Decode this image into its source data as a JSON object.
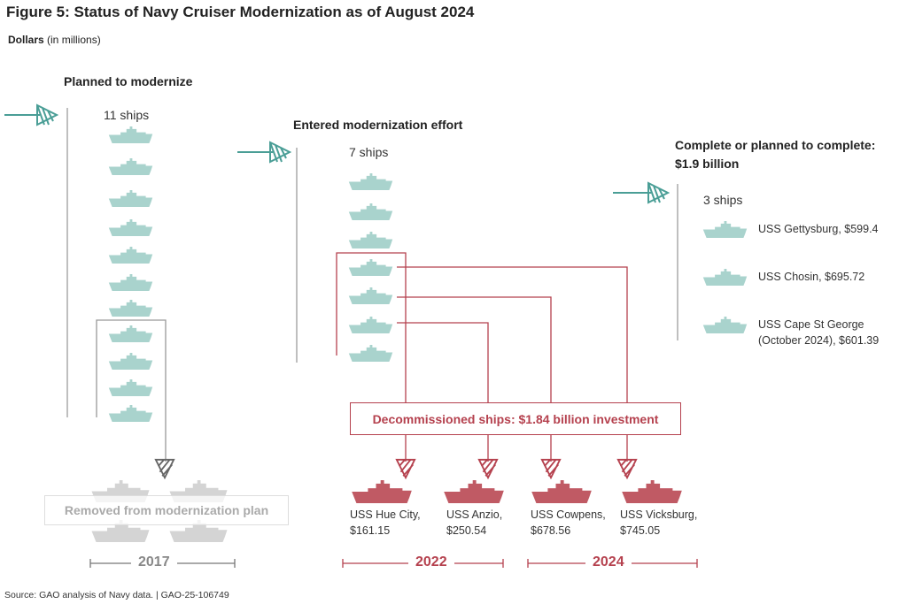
{
  "title": "Figure 5: Status of Navy Cruiser Modernization as of August 2024",
  "units": {
    "bold": "Dollars",
    "rest": " (in millions)"
  },
  "stages": [
    {
      "heading": "Planned to modernize",
      "count": "11 ships"
    },
    {
      "heading": "Entered modernization effort",
      "count": "7 ships"
    },
    {
      "heading": "Complete or planned to complete:",
      "heading2": "$1.9 billion",
      "count": "3 ships"
    }
  ],
  "completed_ships": [
    {
      "label": "USS Gettysburg, $599.4"
    },
    {
      "label": "USS Chosin, $695.72"
    },
    {
      "label": "USS Cape St George",
      "label2": "(October 2024), $601.39"
    }
  ],
  "decommissioned": {
    "box_label": "Decommissioned ships: $1.84 billion investment",
    "ships": [
      {
        "name": "USS Hue City,",
        "cost": "$161.15"
      },
      {
        "name": "USS Anzio,",
        "cost": "$250.54"
      },
      {
        "name": "USS Cowpens,",
        "cost": "$678.56"
      },
      {
        "name": "USS Vicksburg,",
        "cost": "$745.05"
      }
    ]
  },
  "removed": {
    "label": "Removed from modernization plan",
    "ship_count": 4
  },
  "years": [
    "2017",
    "2022",
    "2024"
  ],
  "source": "Source: GAO analysis of Navy data.  |  GAO-25-106749",
  "colors": {
    "teal": "#4a9e96",
    "ship_teal": "#a9d3cd",
    "red": "#b5414e",
    "ship_red": "#c05a64",
    "gray": "#999999",
    "ship_gray": "#d4d4d4"
  }
}
